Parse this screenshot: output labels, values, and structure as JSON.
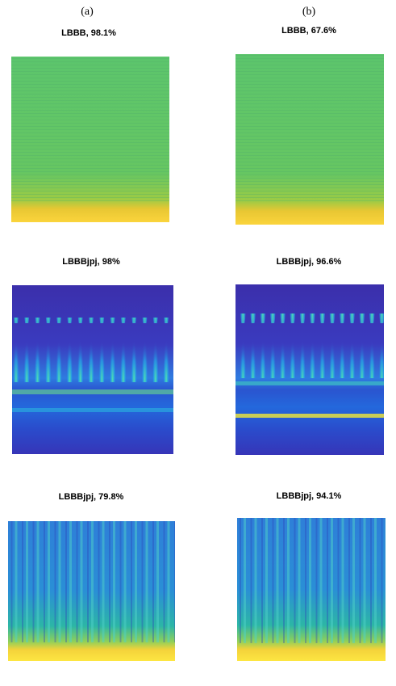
{
  "columns": [
    "(a)",
    "(b)"
  ],
  "panels": [
    {
      "title": "LBBB, 98.1%"
    },
    {
      "title": "LBBB, 67.6%"
    },
    {
      "title": "LBBBjpj, 98%"
    },
    {
      "title": "LBBBjpj, 96.6%"
    },
    {
      "title": "LBBBjpj, 79.8%"
    },
    {
      "title": "LBBBjpj, 94.1%"
    }
  ]
}
